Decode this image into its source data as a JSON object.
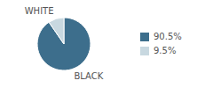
{
  "chart_data": {
    "type": "pie",
    "categories": [
      "BLACK",
      "WHITE"
    ],
    "values": [
      90.5,
      9.5
    ],
    "value_labels": [
      "90.5%",
      "9.5%"
    ],
    "colors": [
      "#3d6e8c",
      "#c8d8e0"
    ],
    "legend": "right"
  }
}
